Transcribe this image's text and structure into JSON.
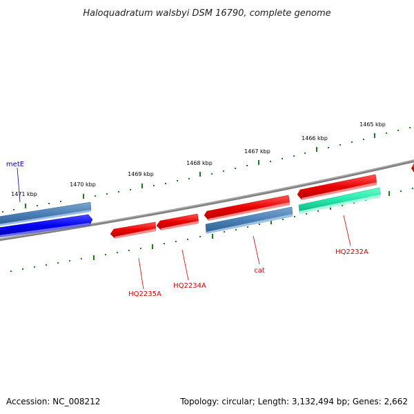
{
  "title": "Haloquadratum walsbyi DSM 16790, complete genome",
  "footer": {
    "accession": "Accession: NC_008212",
    "topology": "Topology: circular; Length: 3,132,494 bp; Genes: 2,662"
  },
  "scale_labels": [
    "1465 kbp",
    "1466 kbp",
    "1467 kbp",
    "1468 kbp",
    "1469 kbp",
    "1470 kbp",
    "1471 kbp"
  ],
  "gene_labels": {
    "metE": "metE",
    "hq2235a": "HQ2235A",
    "hq2234a": "HQ2234A",
    "cat": "cat",
    "hq2232a": "HQ2232A"
  },
  "colors": {
    "backbone": "#808080",
    "tick": "#1a7a1a",
    "gene_red": "#ee1111",
    "gene_blue": "#1111ee",
    "gene_steelblue": "#4a7fb5",
    "gene_cyan": "#22e8a8",
    "label_blue": "#0000aa",
    "label_red": "#cc0000"
  }
}
